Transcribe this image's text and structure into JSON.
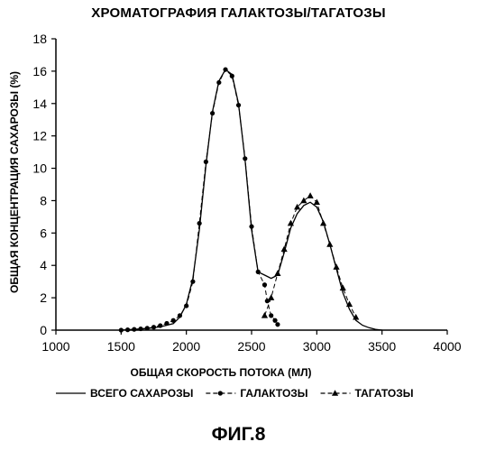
{
  "figure_label": "ФИГ.8",
  "chart_data": {
    "type": "line",
    "title": "ХРОМАТОГРАФИЯ ГАЛАКТОЗЫ/ТАГАТОЗЫ",
    "xlabel": "ОБЩАЯ СКОРОСТЬ ПОТОКА (МЛ)",
    "ylabel": "ОБЩАЯ КОНЦЕНТРАЦИЯ САХАРОЗЫ (%)",
    "xlim": [
      1000,
      4000
    ],
    "ylim": [
      0,
      18
    ],
    "xticks": [
      1000,
      1500,
      2000,
      2500,
      3000,
      3500,
      4000
    ],
    "yticks": [
      0,
      2,
      4,
      6,
      8,
      10,
      12,
      14,
      16,
      18
    ],
    "grid": false,
    "legend_position": "bottom",
    "series": [
      {
        "name": "ВСЕГО САХАРОЗЫ",
        "style": "line",
        "x": [
          1500,
          1600,
          1700,
          1800,
          1900,
          1950,
          2000,
          2050,
          2100,
          2150,
          2200,
          2250,
          2300,
          2350,
          2400,
          2450,
          2500,
          2550,
          2600,
          2650,
          2700,
          2750,
          2800,
          2850,
          2900,
          2950,
          3000,
          3050,
          3100,
          3150,
          3200,
          3250,
          3300,
          3350,
          3400,
          3450,
          3500
        ],
        "y": [
          0.0,
          0.05,
          0.1,
          0.2,
          0.4,
          0.8,
          1.6,
          3.2,
          6.2,
          10.2,
          13.5,
          15.4,
          16.1,
          15.8,
          14.0,
          10.5,
          6.2,
          3.6,
          3.4,
          3.2,
          3.4,
          4.8,
          6.3,
          7.2,
          7.7,
          7.9,
          7.6,
          6.7,
          5.3,
          3.8,
          2.3,
          1.3,
          0.6,
          0.3,
          0.15,
          0.05,
          0.0
        ]
      },
      {
        "name": "ГАЛАКТОЗЫ",
        "style": "dashed-circle",
        "x": [
          1500,
          1550,
          1600,
          1650,
          1700,
          1750,
          1800,
          1850,
          1900,
          1950,
          2000,
          2050,
          2100,
          2150,
          2200,
          2250,
          2300,
          2350,
          2400,
          2450,
          2500,
          2550,
          2600,
          2620,
          2650,
          2680,
          2700
        ],
        "y": [
          0.0,
          0.02,
          0.05,
          0.08,
          0.12,
          0.18,
          0.28,
          0.42,
          0.6,
          0.9,
          1.5,
          3.0,
          6.6,
          10.4,
          13.4,
          15.3,
          16.1,
          15.7,
          13.9,
          10.6,
          6.4,
          3.6,
          2.8,
          1.8,
          0.9,
          0.6,
          0.35
        ]
      },
      {
        "name": "ТАГАТОЗЫ",
        "style": "dashed-triangle",
        "x": [
          2600,
          2650,
          2700,
          2750,
          2800,
          2850,
          2900,
          2950,
          3000,
          3050,
          3100,
          3150,
          3200,
          3250,
          3300
        ],
        "y": [
          0.9,
          2.0,
          3.5,
          5.0,
          6.6,
          7.6,
          8.0,
          8.3,
          7.9,
          6.6,
          5.3,
          3.9,
          2.6,
          1.6,
          0.8
        ]
      }
    ]
  }
}
